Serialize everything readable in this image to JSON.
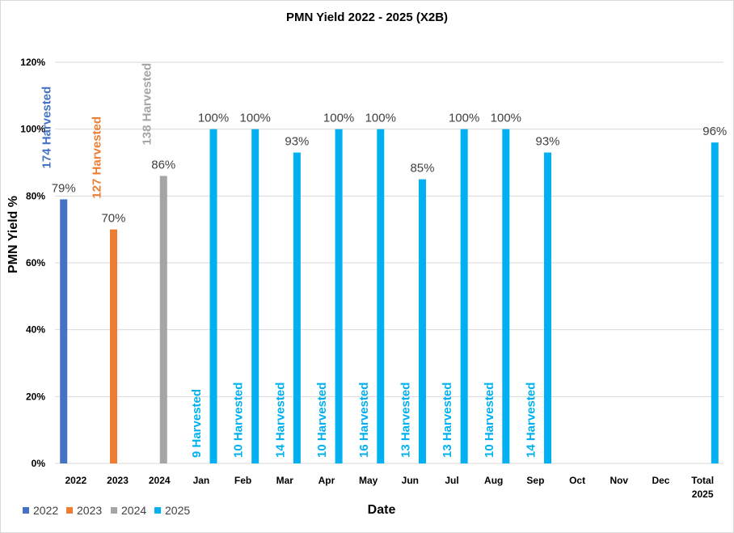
{
  "chart_data": {
    "type": "bar",
    "title": "PMN Yield 2022 - 2025 (X2B)",
    "xlabel": "Date",
    "ylabel": "PMN Yield %",
    "ylim": [
      0,
      120
    ],
    "y_ticks": [
      "0%",
      "20%",
      "40%",
      "60%",
      "80%",
      "100%",
      "120%"
    ],
    "grid": true,
    "legend_position": "bottom-left",
    "categories": [
      "2022",
      "2023",
      "2024",
      "Jan",
      "Feb",
      "Mar",
      "Apr",
      "May",
      "Jun",
      "Jul",
      "Aug",
      "Sep",
      "Oct",
      "Nov",
      "Dec",
      "Total 2025"
    ],
    "series": [
      {
        "name": "2022",
        "color": "#4472c4",
        "values": [
          79,
          null,
          null,
          null,
          null,
          null,
          null,
          null,
          null,
          null,
          null,
          null,
          null,
          null,
          null,
          null
        ]
      },
      {
        "name": "2023",
        "color": "#ed7d31",
        "values": [
          null,
          70,
          null,
          null,
          null,
          null,
          null,
          null,
          null,
          null,
          null,
          null,
          null,
          null,
          null,
          null
        ]
      },
      {
        "name": "2024",
        "color": "#a5a5a5",
        "values": [
          null,
          null,
          86,
          null,
          null,
          null,
          null,
          null,
          null,
          null,
          null,
          null,
          null,
          null,
          null,
          null
        ]
      },
      {
        "name": "2025",
        "color": "#00b0f0",
        "values": [
          null,
          null,
          null,
          100,
          100,
          93,
          100,
          100,
          85,
          100,
          100,
          93,
          null,
          null,
          null,
          96
        ]
      }
    ],
    "value_labels": [
      "79%",
      "70%",
      "86%",
      "100%",
      "100%",
      "93%",
      "100%",
      "100%",
      "85%",
      "100%",
      "100%",
      "93%",
      "",
      "",
      "",
      "96%"
    ],
    "harvest_labels": [
      "174 Harvested",
      "127 Harvested",
      "138 Harvested",
      "9 Harvested",
      "10 Harvested",
      "14 Harvested",
      "10 Harvested",
      "16 Harvested",
      "13 Harvested",
      "13 Harvested",
      "10 Harvested",
      "14 Harvested",
      "",
      "",
      "",
      ""
    ]
  }
}
